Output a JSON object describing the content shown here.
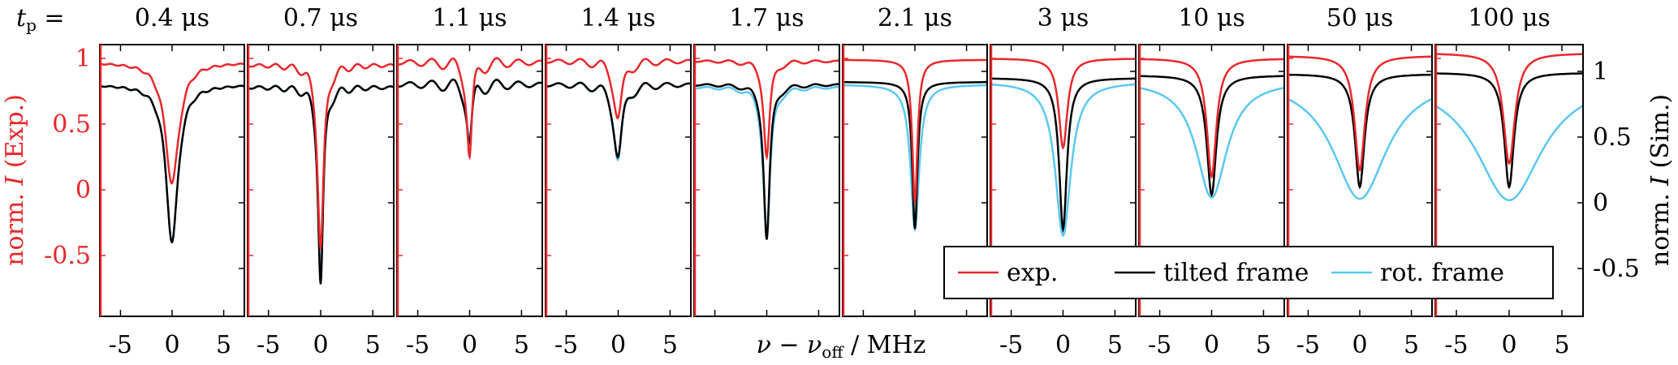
{
  "chart_data": {
    "type": "line",
    "panel_titles_prefix": "t",
    "panel_titles_prefix_sub": "p",
    "panel_titles_eq": " = ",
    "panels": [
      {
        "title": "0.4 μs",
        "tp_us": 0.4
      },
      {
        "title": "0.7 μs",
        "tp_us": 0.7
      },
      {
        "title": "1.1 μs",
        "tp_us": 1.1
      },
      {
        "title": "1.4 μs",
        "tp_us": 1.4
      },
      {
        "title": "1.7 μs",
        "tp_us": 1.7
      },
      {
        "title": "2.1 μs",
        "tp_us": 2.1
      },
      {
        "title": "3 μs",
        "tp_us": 3
      },
      {
        "title": "10 μs",
        "tp_us": 10
      },
      {
        "title": "50 μs",
        "tp_us": 50
      },
      {
        "title": "100 μs",
        "tp_us": 100
      }
    ],
    "xlabel": "ν − ν_off / MHz",
    "xlabel_parts": {
      "nu": "ν − ν",
      "sub": "off",
      "unit": " / MHz"
    },
    "xlim": [
      -7,
      7
    ],
    "xticks": [
      -5,
      0,
      5
    ],
    "xtick_labels": [
      "-5",
      "0",
      "5"
    ],
    "ylabel_left": "norm. I (Exp.)",
    "ylabel_left_parts": {
      "pre": "norm. ",
      "var": "I",
      "post": " (Exp.)"
    },
    "ylim_left": [
      -0.9,
      1.15
    ],
    "yticks_left": [
      1,
      0.5,
      0,
      -0.5
    ],
    "ytick_labels_left": [
      "1",
      "0.5",
      "0",
      "-0.5"
    ],
    "ylabel_right": "norm. I (Sim.)",
    "ylabel_right_parts": {
      "pre": "norm. ",
      "var": "I",
      "post": " (Sim.)"
    },
    "ylim_right": [
      -0.8,
      1.25
    ],
    "yticks_right": [
      1,
      0.5,
      0,
      -0.5
    ],
    "ytick_labels_right": [
      "1",
      "0.5",
      "0",
      "-0.5"
    ],
    "legend": {
      "placement": "bottom-right",
      "entries": [
        {
          "label": "exp.",
          "color": "#e8282b"
        },
        {
          "label": "tilted frame",
          "color": "#000000"
        },
        {
          "label": "rot. frame",
          "color": "#5ac8f0"
        }
      ]
    },
    "colors": {
      "exp": "#e8282b",
      "tilted": "#000000",
      "rot": "#5ac8f0",
      "left_axis": "#e8282b",
      "right_axis": "#000000"
    },
    "series_description": "Each panel shows a dip centred at 0 MHz; values are approximate minima/baselines read from the plot.",
    "series": [
      {
        "tp_us": 0.4,
        "exp": {
          "baseline": 0.97,
          "min": 0.05,
          "width": 0.8
        },
        "tilted": {
          "baseline": 0.9,
          "min": -0.3,
          "width": 0.7
        },
        "rot": {
          "baseline": 0.9,
          "min": -0.3,
          "width": 0.7
        }
      },
      {
        "tp_us": 0.7,
        "exp": {
          "baseline": 0.95,
          "min": -0.45,
          "width": 0.35
        },
        "tilted": {
          "baseline": 0.88,
          "min": -0.62,
          "width": 0.3
        },
        "rot": {
          "baseline": 0.88,
          "min": -0.6,
          "width": 0.3
        }
      },
      {
        "tp_us": 1.1,
        "exp": {
          "baseline": 0.97,
          "min": 0.25,
          "width": 0.3
        },
        "tilted": {
          "baseline": 0.9,
          "min": 0.45,
          "width": 0.3
        },
        "rot": {
          "baseline": 0.9,
          "min": 0.48,
          "width": 0.3
        }
      },
      {
        "tp_us": 1.4,
        "exp": {
          "baseline": 0.98,
          "min": 0.55,
          "width": 0.5
        },
        "tilted": {
          "baseline": 0.9,
          "min": 0.35,
          "width": 0.5
        },
        "rot": {
          "baseline": 0.9,
          "min": 0.33,
          "width": 0.5
        }
      },
      {
        "tp_us": 1.7,
        "exp": {
          "baseline": 0.98,
          "min": 0.25,
          "width": 0.35
        },
        "tilted": {
          "baseline": 0.9,
          "min": -0.28,
          "width": 0.35
        },
        "rot": {
          "baseline": 0.88,
          "min": -0.26,
          "width": 0.4
        }
      },
      {
        "tp_us": 2.1,
        "exp": {
          "baseline": 0.99,
          "min": -0.1,
          "width": 0.3
        },
        "tilted": {
          "baseline": 0.92,
          "min": -0.2,
          "width": 0.3
        },
        "rot": {
          "baseline": 0.9,
          "min": -0.2,
          "width": 0.5
        }
      },
      {
        "tp_us": 3,
        "exp": {
          "baseline": 1.0,
          "min": 0.32,
          "width": 0.5
        },
        "tilted": {
          "baseline": 0.95,
          "min": -0.2,
          "width": 0.45
        },
        "rot": {
          "baseline": 0.92,
          "min": -0.25,
          "width": 0.9
        }
      },
      {
        "tp_us": 10,
        "exp": {
          "baseline": 1.0,
          "min": 0.1,
          "width": 0.55
        },
        "tilted": {
          "baseline": 0.97,
          "min": 0.06,
          "width": 0.55
        },
        "rot": {
          "baseline": 0.93,
          "min": 0.04,
          "width": 1.8
        }
      },
      {
        "tp_us": 50,
        "exp": {
          "baseline": 1.02,
          "min": 0.15,
          "width": 0.6
        },
        "tilted": {
          "baseline": 0.98,
          "min": 0.12,
          "width": 0.55
        },
        "rot": {
          "baseline": 0.95,
          "min": 0.03,
          "width": 3.2
        }
      },
      {
        "tp_us": 100,
        "exp": {
          "baseline": 1.04,
          "min": 0.2,
          "width": 0.65
        },
        "tilted": {
          "baseline": 0.99,
          "min": 0.12,
          "width": 0.55
        },
        "rot": {
          "baseline": 0.95,
          "min": 0.02,
          "width": 3.8
        }
      }
    ]
  }
}
